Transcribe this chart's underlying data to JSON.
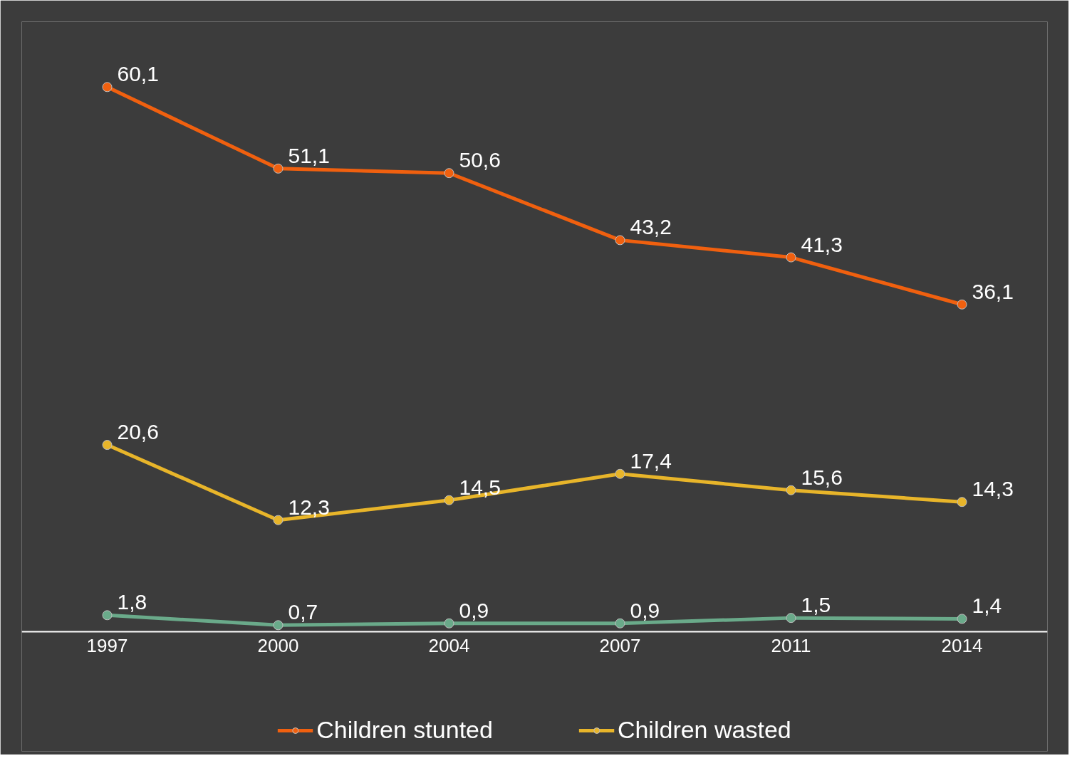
{
  "chart_data": {
    "type": "line",
    "categories": [
      "1997",
      "2000",
      "2004",
      "2007",
      "2011",
      "2014"
    ],
    "grid": false,
    "legend": "bottom",
    "marker": "circle",
    "line_style": "solid",
    "series": [
      {
        "name": "Children stunted",
        "color": "#f0600f",
        "values": [
          60.1,
          51.1,
          50.6,
          43.2,
          41.3,
          36.1
        ],
        "value_labels": [
          "60,1",
          "51,1",
          "50,6",
          "43,2",
          "41,3",
          "36,1"
        ]
      },
      {
        "name": "Children wasted",
        "color": "#e8b52a",
        "values": [
          20.6,
          12.3,
          14.5,
          17.4,
          15.6,
          14.3
        ],
        "value_labels": [
          "20,6",
          "12,3",
          "14,5",
          "17,4",
          "15,6",
          "14,3"
        ]
      },
      {
        "color": "#6aaa8a",
        "values": [
          1.8,
          0.7,
          0.9,
          0.9,
          1.5,
          1.4
        ],
        "value_labels": [
          "1,8",
          "0,7",
          "0,9",
          "0,9",
          "1,5",
          "1,4"
        ]
      }
    ]
  }
}
